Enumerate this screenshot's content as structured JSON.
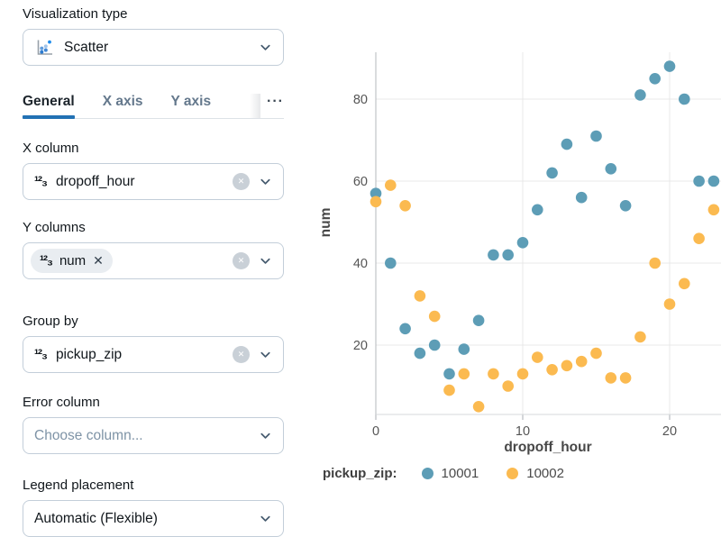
{
  "icons": {
    "number_glyph": "¹²₃",
    "clear_glyph": "✕",
    "chip_remove_glyph": "✕"
  },
  "colors": {
    "accent_blue": "#2272b4",
    "series_blue": "#5d9db6",
    "series_yellow": "#fbba50",
    "gridline": "#e8e8e8",
    "zeroline": "#b4b9bd"
  },
  "sidebar": {
    "viz_type": {
      "label": "Visualization type",
      "value": "Scatter"
    },
    "tabs": {
      "general": "General",
      "x_axis": "X axis",
      "y_axis": "Y axis",
      "more": "···"
    },
    "x_column": {
      "label": "X column",
      "value": "dropoff_hour"
    },
    "y_columns": {
      "label": "Y columns",
      "chip": "num"
    },
    "group_by": {
      "label": "Group by",
      "value": "pickup_zip"
    },
    "error_column": {
      "label": "Error column",
      "placeholder": "Choose column..."
    },
    "legend_placement": {
      "label": "Legend placement",
      "value": "Automatic (Flexible)"
    }
  },
  "chart_data": {
    "type": "scatter",
    "xlabel": "dropoff_hour",
    "ylabel": "num",
    "legend_title": "pickup_zip:",
    "legend_position": "bottom",
    "grid": true,
    "x": [
      0,
      1,
      2,
      3,
      4,
      5,
      6,
      7,
      8,
      9,
      10,
      11,
      12,
      13,
      14,
      15,
      16,
      17,
      18,
      19,
      20,
      21,
      22,
      23
    ],
    "series": [
      {
        "name": "10001",
        "color": "#5d9db6",
        "values": [
          57,
          40,
          24,
          18,
          20,
          13,
          19,
          26,
          42,
          42,
          45,
          53,
          62,
          69,
          56,
          71,
          63,
          54,
          81,
          85,
          88,
          80,
          60,
          60
        ]
      },
      {
        "name": "10002",
        "color": "#fbba50",
        "values": [
          55,
          59,
          54,
          32,
          27,
          9,
          13,
          5,
          13,
          10,
          13,
          17,
          14,
          15,
          16,
          18,
          12,
          12,
          22,
          40,
          30,
          35,
          46,
          53
        ]
      }
    ],
    "xticks": [
      0,
      10,
      20
    ],
    "yticks": [
      20,
      40,
      60,
      80
    ],
    "xlim": [
      -1.5,
      23.5
    ],
    "ylim": [
      0,
      95
    ]
  }
}
